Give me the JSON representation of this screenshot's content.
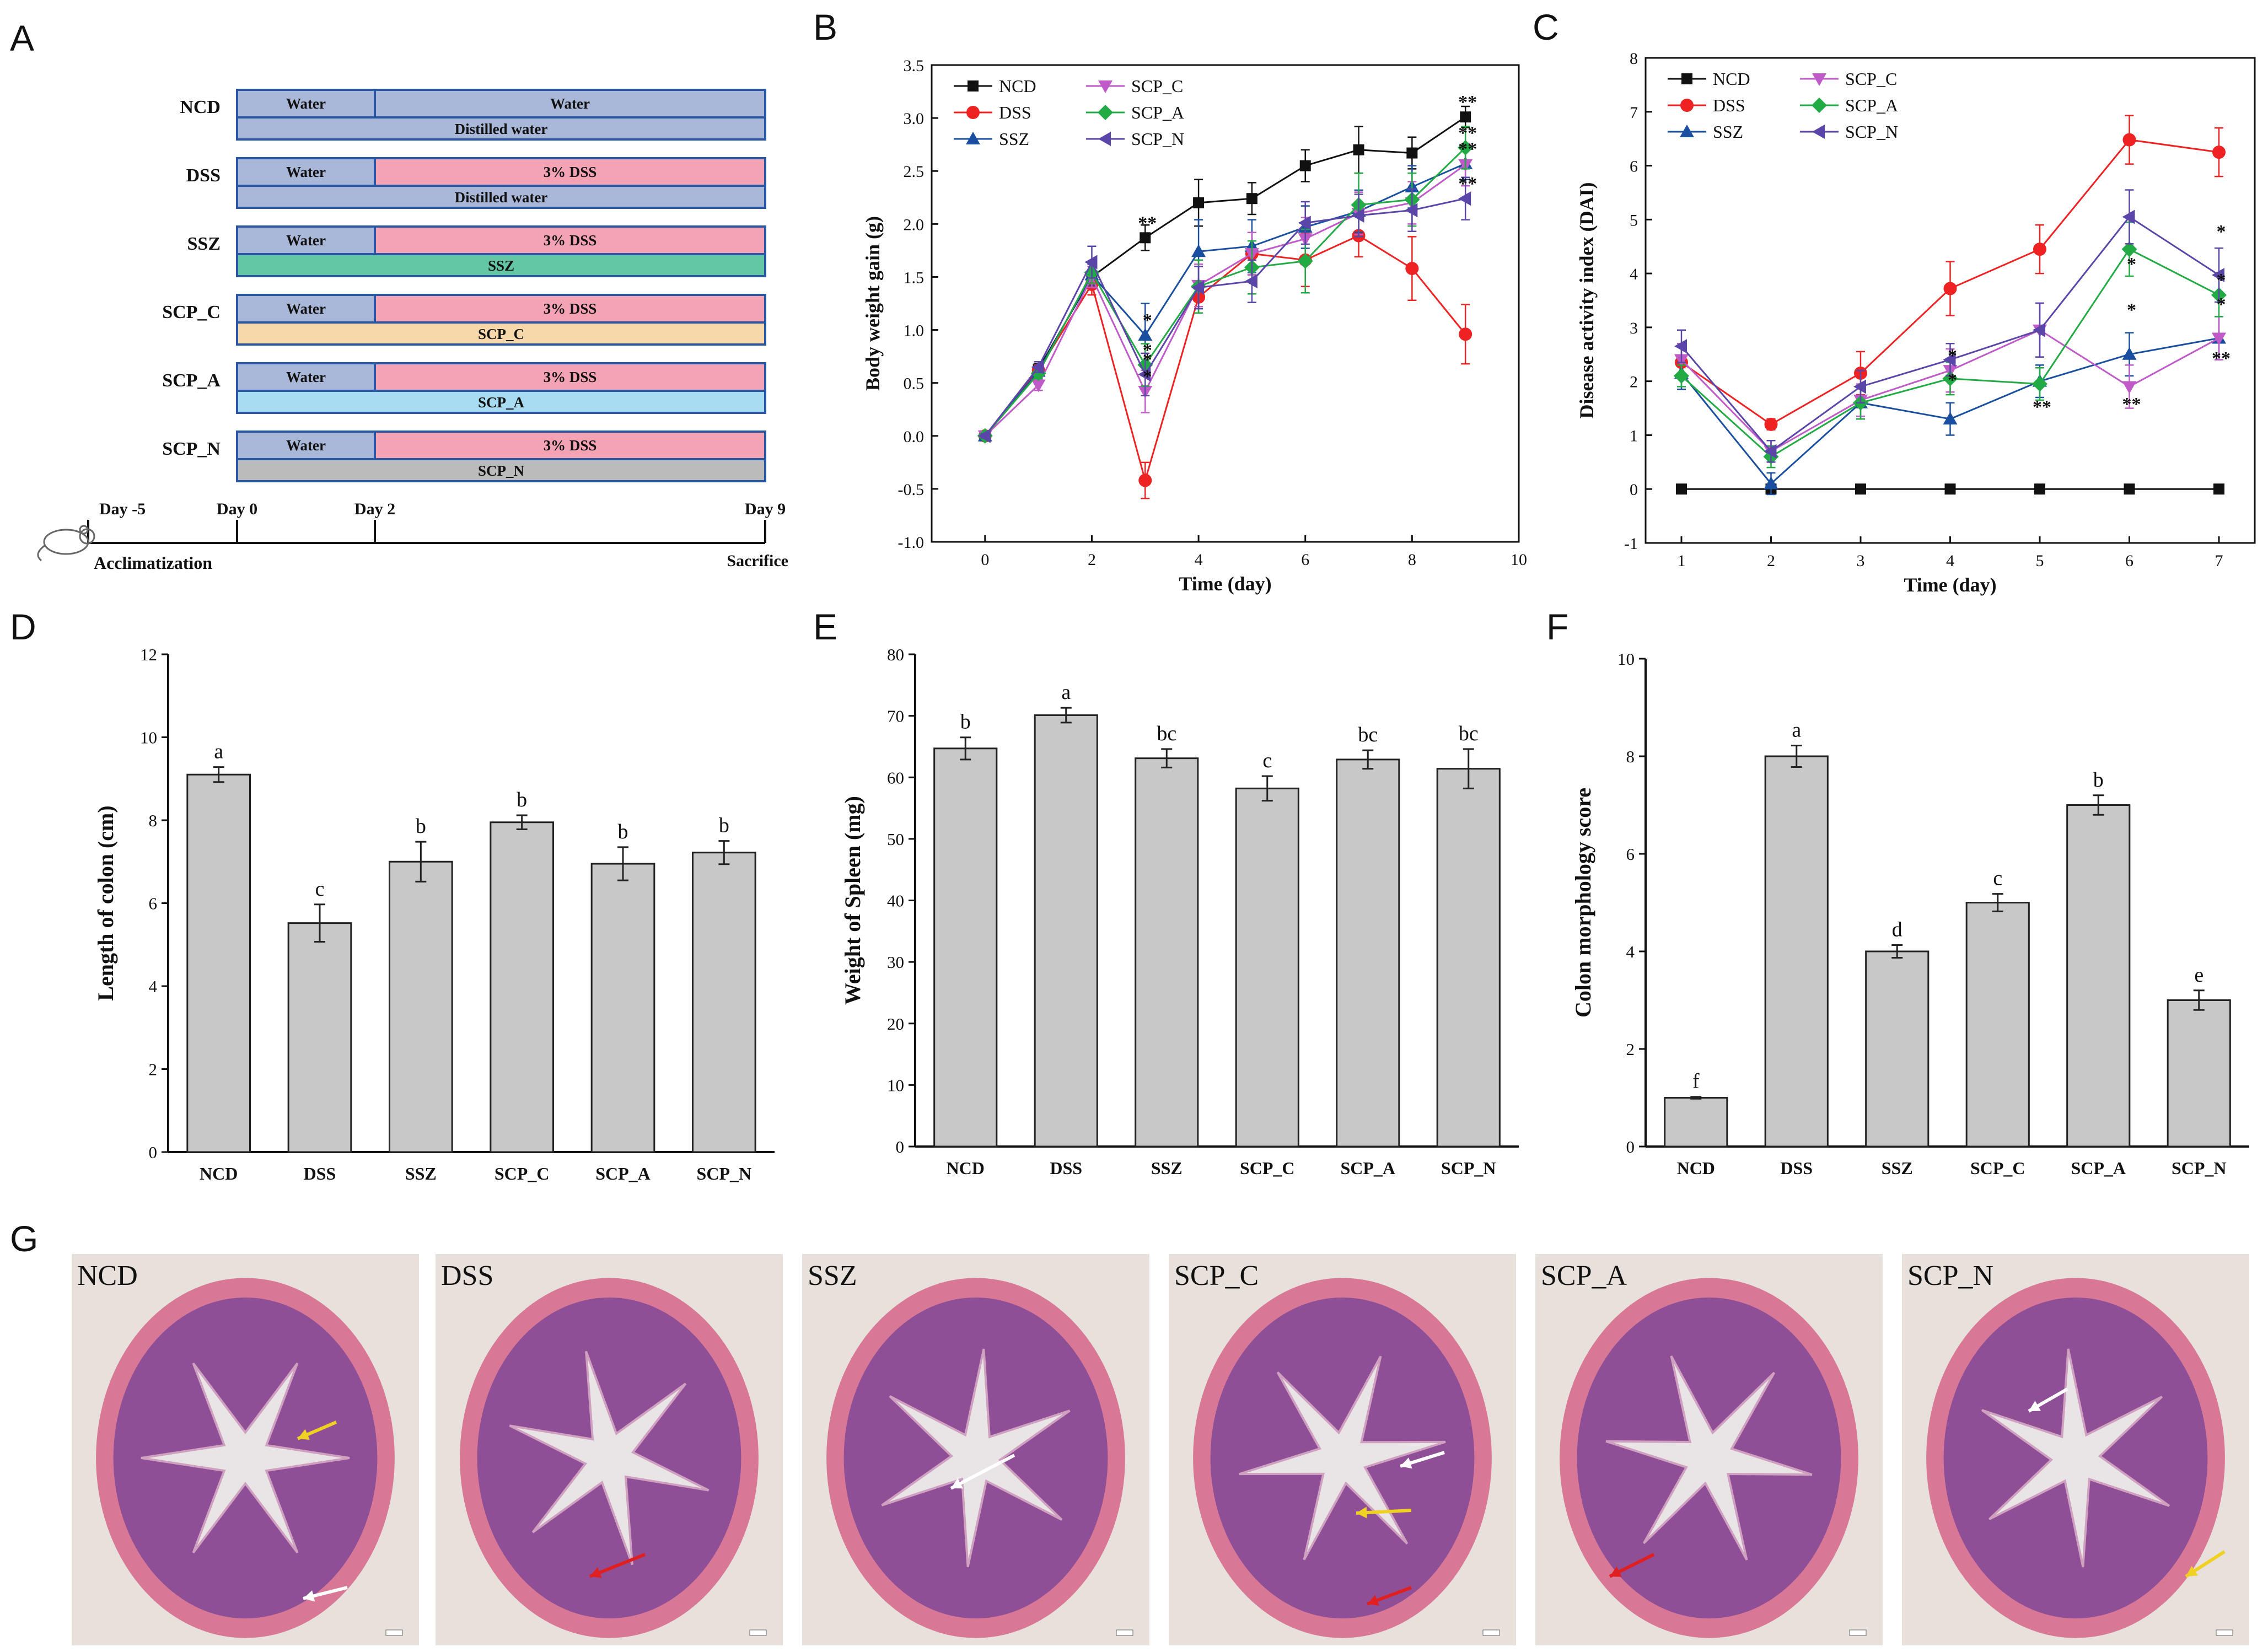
{
  "panel_labels": [
    "A",
    "B",
    "C",
    "D",
    "E",
    "F",
    "G"
  ],
  "colors": {
    "water_bar": "#a9b7d8",
    "dss_bar": "#f4a3b4",
    "ssz_bar": "#63c7a6",
    "scp_c_bar": "#f7d8aa",
    "scp_a_bar": "#a8dcf2",
    "scp_n_bar": "#bbbbbb",
    "distilled_bar": "#a9b7d8",
    "bar_fill": "#c8c8c8",
    "NCD": "#111111",
    "DSS": "#ee2222",
    "SSZ": "#1a4fa0",
    "SCP_C": "#c05ac8",
    "SCP_A": "#22aa44",
    "SCP_N": "#5b45a8"
  },
  "schematic": {
    "groups": [
      {
        "name": "NCD",
        "first": "Water",
        "second": "Water",
        "bottom": "Distilled water",
        "second_color": "water_bar",
        "bottom_color": "distilled_bar"
      },
      {
        "name": "DSS",
        "first": "Water",
        "second": "3% DSS",
        "bottom": "Distilled water",
        "second_color": "dss_bar",
        "bottom_color": "distilled_bar"
      },
      {
        "name": "SSZ",
        "first": "Water",
        "second": "3% DSS",
        "bottom": "SSZ",
        "second_color": "dss_bar",
        "bottom_color": "ssz_bar"
      },
      {
        "name": "SCP_C",
        "first": "Water",
        "second": "3% DSS",
        "bottom": "SCP_C",
        "second_color": "dss_bar",
        "bottom_color": "scp_c_bar"
      },
      {
        "name": "SCP_A",
        "first": "Water",
        "second": "3% DSS",
        "bottom": "SCP_A",
        "second_color": "dss_bar",
        "bottom_color": "scp_a_bar"
      },
      {
        "name": "SCP_N",
        "first": "Water",
        "second": "3% DSS",
        "bottom": "SCP_N",
        "second_color": "dss_bar",
        "bottom_color": "scp_n_bar"
      }
    ],
    "timeline": {
      "days": [
        "Day -5",
        "Day 0",
        "Day 2",
        "Day 9"
      ],
      "start_label": "Acclimatization",
      "end_label": "Sacrifice"
    }
  },
  "chart_data": [
    {
      "panel": "B",
      "type": "line",
      "xlabel": "Time (day)",
      "ylabel": "Body weight gain (g)",
      "xlim": [
        -1,
        10
      ],
      "ylim": [
        -1.0,
        3.5
      ],
      "xticks": [
        "0",
        "2",
        "4",
        "6",
        "8",
        "10"
      ],
      "yticks": [
        "-1.0",
        "-0.5",
        "0.0",
        "0.5",
        "1.0",
        "1.5",
        "2.0",
        "2.5",
        "3.0",
        "3.5"
      ],
      "x": [
        0,
        1,
        2,
        3,
        4,
        5,
        6,
        7,
        8,
        9
      ],
      "series": [
        {
          "name": "NCD",
          "marker": "square",
          "values": [
            0,
            0.63,
            1.5,
            1.87,
            2.2,
            2.24,
            2.55,
            2.7,
            2.67,
            3.01
          ],
          "errors": [
            0.02,
            0.05,
            0.1,
            0.12,
            0.22,
            0.15,
            0.15,
            0.22,
            0.15,
            0.1
          ]
        },
        {
          "name": "DSS",
          "marker": "circle",
          "values": [
            0,
            0.62,
            1.43,
            -0.42,
            1.31,
            1.72,
            1.66,
            1.89,
            1.58,
            0.96
          ],
          "errors": [
            0.02,
            0.05,
            0.1,
            0.17,
            0.15,
            0.2,
            0.25,
            0.2,
            0.3,
            0.28
          ]
        },
        {
          "name": "SSZ",
          "marker": "triangle-up",
          "values": [
            0,
            0.61,
            1.52,
            0.95,
            1.74,
            1.79,
            1.97,
            2.12,
            2.35,
            2.57
          ],
          "errors": [
            0.02,
            0.05,
            0.1,
            0.3,
            0.3,
            0.25,
            0.2,
            0.2,
            0.2,
            0.15
          ]
        },
        {
          "name": "SCP_C",
          "marker": "triangle-down",
          "values": [
            0,
            0.48,
            1.5,
            0.42,
            1.42,
            1.72,
            1.86,
            2.1,
            2.2,
            2.56
          ],
          "errors": [
            0.02,
            0.05,
            0.1,
            0.2,
            0.2,
            0.2,
            0.2,
            0.2,
            0.2,
            0.2
          ]
        },
        {
          "name": "SCP_A",
          "marker": "diamond",
          "values": [
            0,
            0.59,
            1.54,
            0.67,
            1.41,
            1.59,
            1.65,
            2.18,
            2.23,
            2.72
          ],
          "errors": [
            0.02,
            0.05,
            0.1,
            0.2,
            0.25,
            0.25,
            0.3,
            0.3,
            0.25,
            0.2
          ]
        },
        {
          "name": "SCP_N",
          "marker": "triangle-left",
          "values": [
            0,
            0.65,
            1.64,
            0.58,
            1.4,
            1.46,
            2.01,
            2.08,
            2.13,
            2.24
          ],
          "errors": [
            0.02,
            0.05,
            0.15,
            0.2,
            0.2,
            0.2,
            0.2,
            0.2,
            0.2,
            0.2
          ]
        }
      ],
      "annotations": [
        {
          "x": 3,
          "y": 1.87,
          "text": "**"
        },
        {
          "x": 3,
          "y": 0.95,
          "text": "*"
        },
        {
          "x": 3,
          "y": 0.67,
          "text": "*"
        },
        {
          "x": 3,
          "y": 0.58,
          "text": "*"
        },
        {
          "x": 3,
          "y": 0.42,
          "text": "*"
        },
        {
          "x": 9,
          "y": 3.01,
          "text": "**"
        },
        {
          "x": 9,
          "y": 2.72,
          "text": "**"
        },
        {
          "x": 9,
          "y": 2.57,
          "text": "**"
        },
        {
          "x": 9,
          "y": 2.24,
          "text": "**"
        }
      ],
      "legend": "top-left"
    },
    {
      "panel": "C",
      "type": "line",
      "xlabel": "Time (day)",
      "ylabel": "Disease activity index (DAI)",
      "xlim": [
        0.6,
        7.4
      ],
      "ylim": [
        -1,
        8
      ],
      "xticks": [
        "1",
        "2",
        "3",
        "4",
        "5",
        "6",
        "7"
      ],
      "yticks": [
        "-1",
        "0",
        "1",
        "2",
        "3",
        "4",
        "5",
        "6",
        "7",
        "8"
      ],
      "x": [
        1,
        2,
        3,
        4,
        5,
        6,
        7
      ],
      "series": [
        {
          "name": "NCD",
          "marker": "square",
          "values": [
            0,
            0,
            0,
            0,
            0,
            0,
            0
          ],
          "errors": [
            0,
            0,
            0,
            0,
            0,
            0,
            0
          ]
        },
        {
          "name": "DSS",
          "marker": "circle",
          "values": [
            2.35,
            1.2,
            2.15,
            3.72,
            4.45,
            6.48,
            6.25
          ],
          "errors": [
            0.3,
            0.1,
            0.4,
            0.5,
            0.45,
            0.45,
            0.45
          ]
        },
        {
          "name": "SSZ",
          "marker": "triangle-up",
          "values": [
            2.15,
            0.1,
            1.6,
            1.3,
            2.0,
            2.5,
            2.8
          ],
          "errors": [
            0.3,
            0.2,
            0.3,
            0.3,
            0.3,
            0.4,
            0.4
          ]
        },
        {
          "name": "SCP_C",
          "marker": "triangle-down",
          "values": [
            2.4,
            0.7,
            1.65,
            2.2,
            2.95,
            1.9,
            2.8
          ],
          "errors": [
            0.3,
            0.2,
            0.3,
            0.4,
            0.5,
            0.4,
            0.4
          ]
        },
        {
          "name": "SCP_A",
          "marker": "diamond",
          "values": [
            2.1,
            0.6,
            1.6,
            2.05,
            1.95,
            4.45,
            3.6
          ],
          "errors": [
            0.2,
            0.2,
            0.3,
            0.3,
            0.3,
            0.5,
            0.4
          ]
        },
        {
          "name": "SCP_N",
          "marker": "triangle-left",
          "values": [
            2.65,
            0.7,
            1.9,
            2.4,
            2.95,
            5.05,
            3.97
          ],
          "errors": [
            0.3,
            0.2,
            0.3,
            0.3,
            0.5,
            0.5,
            0.5
          ]
        }
      ],
      "annotations": [
        {
          "x": 4,
          "y": 2.2,
          "text": "*"
        },
        {
          "x": 4,
          "y": 1.75,
          "text": "*"
        },
        {
          "x": 5,
          "y": 1.25,
          "text": "**"
        },
        {
          "x": 6,
          "y": 3.9,
          "text": "*"
        },
        {
          "x": 6,
          "y": 3.05,
          "text": "*"
        },
        {
          "x": 6,
          "y": 1.3,
          "text": "**"
        },
        {
          "x": 7,
          "y": 4.5,
          "text": "*"
        },
        {
          "x": 7,
          "y": 3.6,
          "text": "*"
        },
        {
          "x": 7,
          "y": 3.15,
          "text": "*"
        },
        {
          "x": 7,
          "y": 2.15,
          "text": "**"
        }
      ],
      "legend": "top-left"
    },
    {
      "panel": "D",
      "type": "bar",
      "categories": [
        "NCD",
        "DSS",
        "SSZ",
        "SCP_C",
        "SCP_A",
        "SCP_N"
      ],
      "values": [
        9.1,
        5.52,
        7.0,
        7.95,
        6.95,
        7.22
      ],
      "errors": [
        0.18,
        0.45,
        0.48,
        0.17,
        0.4,
        0.28
      ],
      "letters": [
        "a",
        "c",
        "b",
        "b",
        "b",
        "b"
      ],
      "ylabel": "Length of colon (cm)",
      "xlabel": "",
      "ylim": [
        0,
        12
      ],
      "yticks": [
        "0",
        "2",
        "4",
        "6",
        "8",
        "10",
        "12"
      ]
    },
    {
      "panel": "E",
      "type": "bar",
      "categories": [
        "NCD",
        "DSS",
        "SSZ",
        "SCP_C",
        "SCP_A",
        "SCP_N"
      ],
      "values": [
        64.7,
        70.1,
        63.1,
        58.2,
        62.9,
        61.4
      ],
      "errors": [
        1.8,
        1.2,
        1.5,
        2.0,
        1.5,
        3.2
      ],
      "letters": [
        "b",
        "a",
        "bc",
        "c",
        "bc",
        "bc"
      ],
      "ylabel": "Weight of Spleen (mg)",
      "xlabel": "",
      "ylim": [
        0,
        80
      ],
      "yticks": [
        "0",
        "10",
        "20",
        "30",
        "40",
        "50",
        "60",
        "70",
        "80"
      ]
    },
    {
      "panel": "F",
      "type": "bar",
      "categories": [
        "NCD",
        "DSS",
        "SSZ",
        "SCP_C",
        "SCP_A",
        "SCP_N"
      ],
      "values": [
        1.0,
        8.0,
        4.0,
        5.0,
        7.0,
        3.0
      ],
      "errors": [
        0.02,
        0.22,
        0.13,
        0.18,
        0.2,
        0.2
      ],
      "letters": [
        "f",
        "a",
        "d",
        "c",
        "b",
        "e"
      ],
      "ylabel": "Colon morphology score",
      "xlabel": "",
      "ylim": [
        0,
        10
      ],
      "yticks": [
        "0",
        "2",
        "4",
        "6",
        "8",
        "10"
      ]
    }
  ],
  "histology": {
    "images": [
      {
        "label": "NCD"
      },
      {
        "label": "DSS"
      },
      {
        "label": "SSZ"
      },
      {
        "label": "SCP_C"
      },
      {
        "label": "SCP_A"
      },
      {
        "label": "SCP_N"
      }
    ]
  }
}
